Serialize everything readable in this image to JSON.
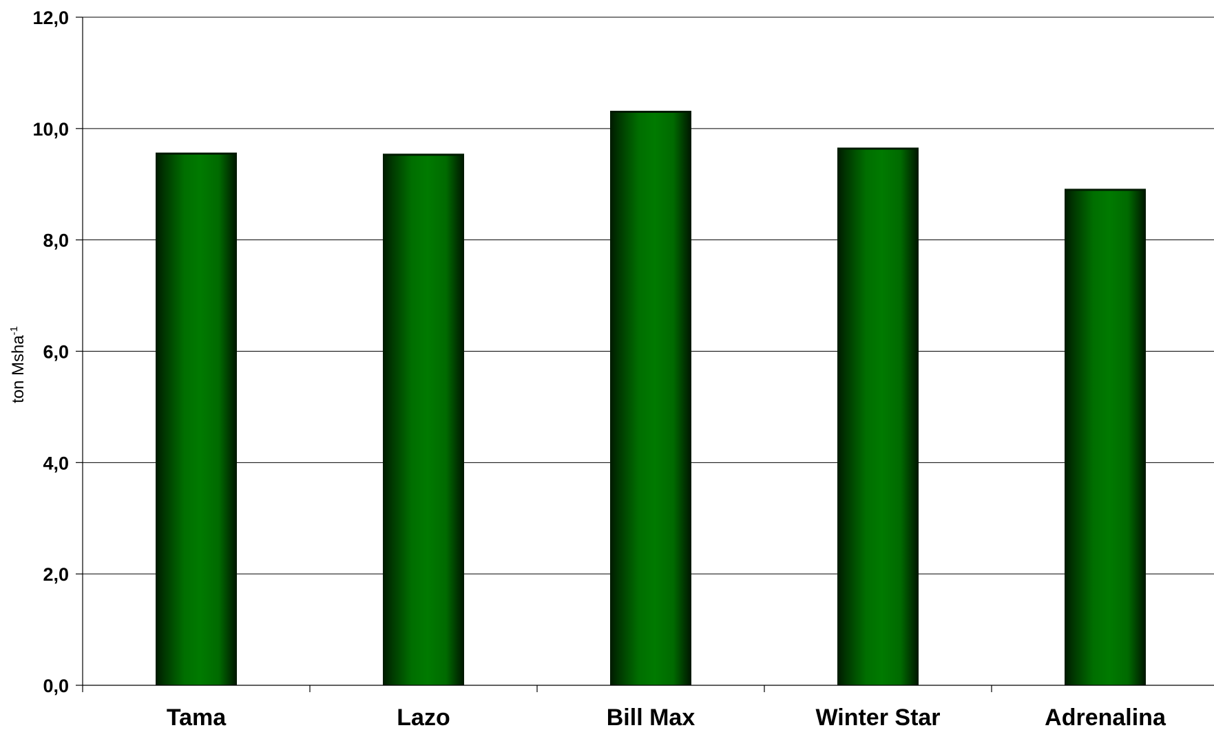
{
  "chart_data": {
    "type": "bar",
    "categories": [
      "Tama",
      "Lazo",
      "Bill Max",
      "Winter Star",
      "Adrenalina"
    ],
    "values": [
      9.55,
      9.53,
      10.3,
      9.64,
      8.9
    ],
    "title": "",
    "xlabel": "",
    "ylabel": "ton Msha",
    "ylabel_superscript": "-1",
    "ylim": [
      0,
      12
    ],
    "yticks": [
      0,
      2,
      4,
      6,
      8,
      10,
      12
    ],
    "ytick_labels": [
      "0,0",
      "2,0",
      "4,0",
      "6,0",
      "8,0",
      "10,0",
      "12,0"
    ],
    "grid": true,
    "bar_color": "#007a00",
    "bar_edge_color": "#001a00"
  }
}
